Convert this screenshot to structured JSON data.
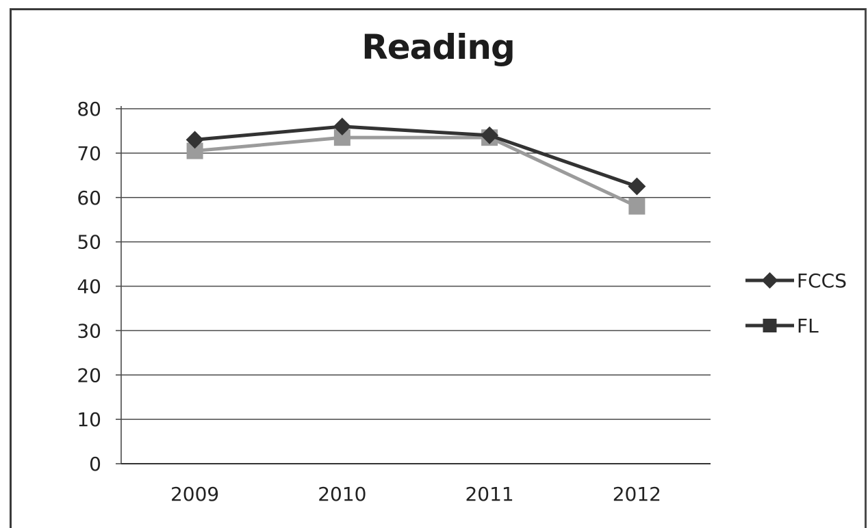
{
  "chart_data": {
    "type": "line",
    "title": "Reading",
    "categories": [
      "2009",
      "2010",
      "2011",
      "2012"
    ],
    "ylim": [
      0,
      80
    ],
    "yticks": [
      0,
      10,
      20,
      30,
      40,
      50,
      60,
      70,
      80
    ],
    "grid": true,
    "legend_position": "right",
    "series": [
      {
        "name": "FCCS",
        "values": [
          73,
          76,
          74,
          62.5
        ],
        "color": "#333333",
        "marker": "diamond"
      },
      {
        "name": "FL",
        "values": [
          70.5,
          73.5,
          73.5,
          58
        ],
        "color": "#9b9b9b",
        "marker": "square"
      }
    ]
  }
}
